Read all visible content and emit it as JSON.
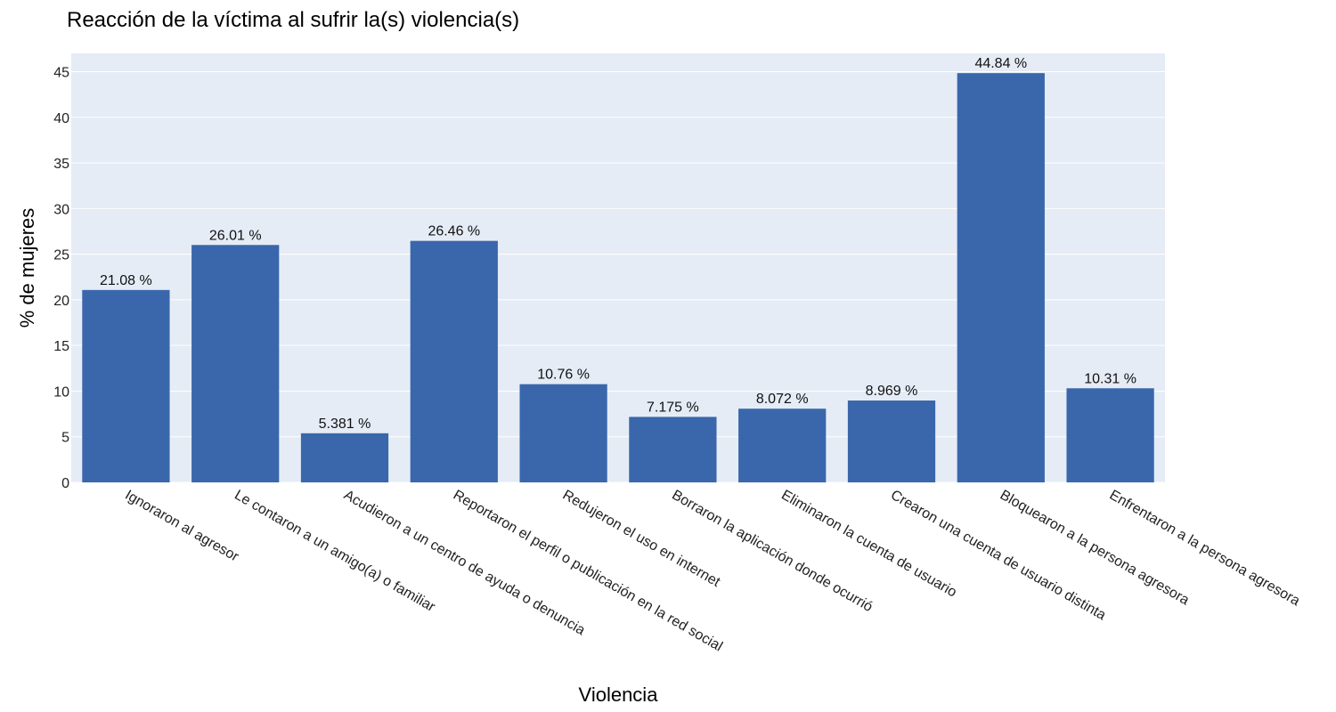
{
  "chart_data": {
    "type": "bar",
    "title": "Reacción de la víctima al sufrir la(s) violencia(s)",
    "xlabel": "Violencia",
    "ylabel": "% de mujeres",
    "ylim": [
      0,
      47
    ],
    "yticks": [
      0,
      5,
      10,
      15,
      20,
      25,
      30,
      35,
      40,
      45
    ],
    "grid": true,
    "bar_color": "#3a67ab",
    "plot_bg": "#e5ecf6",
    "categories": [
      "Ignoraron al agresor",
      "Le contaron a un amigo(a) o familiar",
      "Acudieron a un centro de ayuda o denuncia",
      "Reportaron el perfil o publicación en la red social",
      "Redujeron el uso en internet",
      "Borraron la aplicación donde ocurrió",
      "Eliminaron la cuenta de usuario",
      "Crearon una cuenta de usuario distinta",
      "Bloquearon a la persona agresora",
      "Enfrentaron a la persona agresora"
    ],
    "values": [
      21.08,
      26.01,
      5.381,
      26.46,
      10.76,
      7.175,
      8.072,
      8.969,
      44.84,
      10.31
    ],
    "data_labels": [
      "21.08 %",
      "26.01 %",
      "5.381 %",
      "26.46 %",
      "10.76 %",
      "7.175 %",
      "8.072 %",
      "8.969 %",
      "44.84 %",
      "10.31 %"
    ]
  }
}
